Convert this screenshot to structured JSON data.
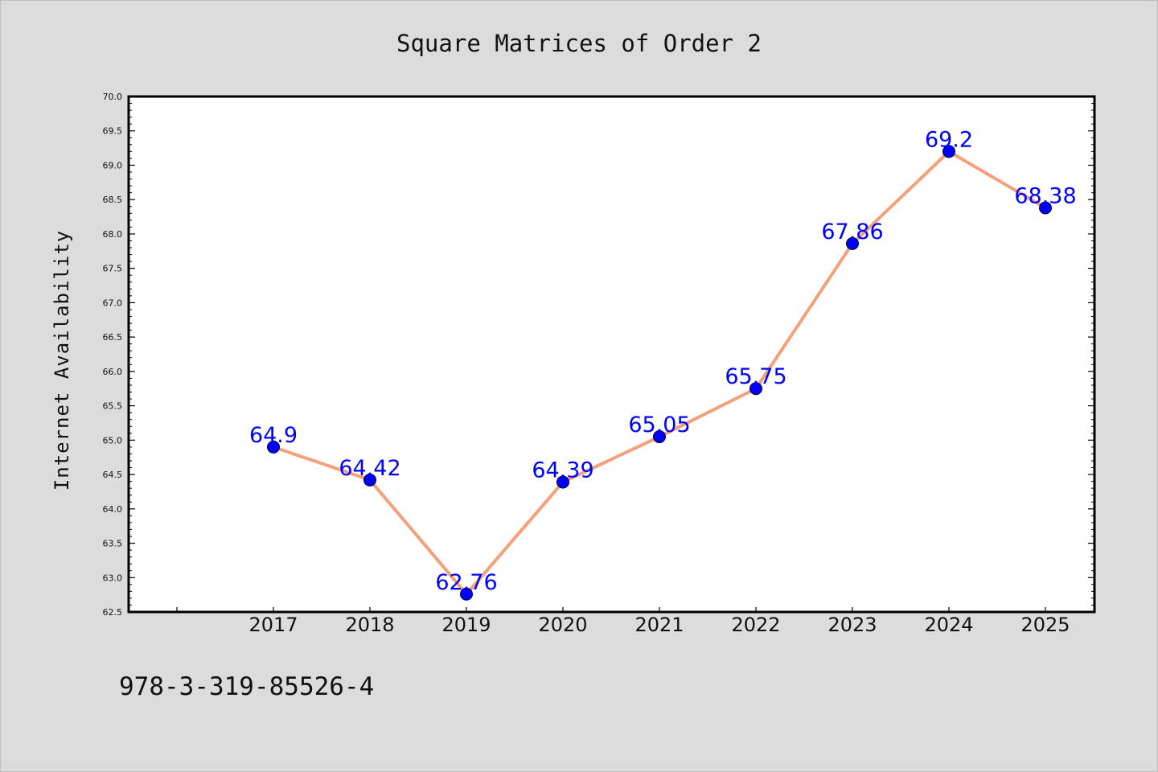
{
  "footer_text": "978-3-319-85526-4",
  "colors": {
    "background": "#dcdcdc",
    "plot_background": "#ffffff",
    "line": "#f4a07a",
    "marker": "#0000ff",
    "data_label": "#0000ff"
  },
  "chart_data": {
    "type": "line",
    "title": "Square Matrices of Order 2",
    "xlabel": "",
    "ylabel": "Internet Availability",
    "categories": [
      "2017",
      "2018",
      "2019",
      "2020",
      "2021",
      "2022",
      "2023",
      "2024",
      "2025"
    ],
    "series": [
      {
        "values": [
          64.9,
          64.42,
          62.76,
          64.39,
          65.05,
          65.75,
          67.86,
          69.2,
          68.38
        ],
        "data_labels": [
          "64.9",
          "64.42",
          "62.76",
          "64.39",
          "65.05",
          "65.75",
          "67.86",
          "69.2",
          "68.38"
        ]
      }
    ],
    "ylim": [
      62.5,
      70.0
    ],
    "y_ticks": [
      "62.5",
      "63.0",
      "63.5",
      "64.0",
      "64.5",
      "65.0",
      "65.5",
      "66.0",
      "66.5",
      "67.0",
      "67.5",
      "68.0",
      "68.5",
      "69.0",
      "69.5",
      "70.0"
    ],
    "grid": false,
    "legend": "none"
  }
}
